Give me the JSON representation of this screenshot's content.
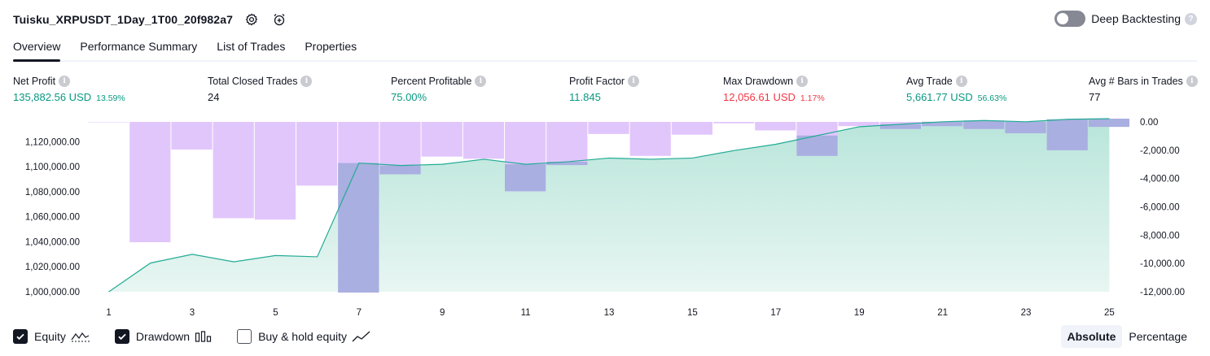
{
  "header": {
    "strategy_title": "Tuisku_XRPUSDT_1Day_1T00_20f982a7",
    "deep_backtesting_label": "Deep Backtesting"
  },
  "tabs": [
    {
      "label": "Overview",
      "active": true
    },
    {
      "label": "Performance Summary",
      "active": false
    },
    {
      "label": "List of Trades",
      "active": false
    },
    {
      "label": "Properties",
      "active": false
    }
  ],
  "metrics": {
    "net_profit": {
      "label": "Net Profit",
      "value": "135,882.56 USD",
      "pct": "13.59%"
    },
    "total_closed_trades": {
      "label": "Total Closed Trades",
      "value": "24"
    },
    "percent_profitable": {
      "label": "Percent Profitable",
      "value": "75.00%"
    },
    "profit_factor": {
      "label": "Profit Factor",
      "value": "11.845"
    },
    "max_drawdown": {
      "label": "Max Drawdown",
      "value": "12,056.61 USD",
      "pct": "1.17%"
    },
    "avg_trade": {
      "label": "Avg Trade",
      "value": "5,661.77 USD",
      "pct": "56.63%"
    },
    "avg_bars": {
      "label": "Avg # Bars in Trades",
      "value": "77"
    }
  },
  "colors": {
    "equity_line": "#22ab94",
    "equity_fill": "#b8e5da",
    "drawdown_bar": "#e1c6fc",
    "overlap_bar": "#a9afe0",
    "green": "#089981",
    "red": "#f23645"
  },
  "chart_data": {
    "type": "area",
    "x": [
      1,
      2,
      3,
      4,
      5,
      6,
      7,
      8,
      9,
      10,
      11,
      12,
      13,
      14,
      15,
      16,
      17,
      18,
      19,
      20,
      21,
      22,
      23,
      24,
      25
    ],
    "x_ticks": [
      "1",
      "3",
      "5",
      "7",
      "9",
      "11",
      "13",
      "15",
      "17",
      "19",
      "21",
      "23",
      "25"
    ],
    "y_left_ticks": [
      "1,000,000.00",
      "1,020,000.00",
      "1,040,000.00",
      "1,060,000.00",
      "1,080,000.00",
      "1,100,000.00",
      "1,120,000.00"
    ],
    "y_right_ticks": [
      "0.00",
      "-2,000.00",
      "-4,000.00",
      "-6,000.00",
      "-8,000.00",
      "-10,000.00",
      "-12,000.00"
    ],
    "y_left_range": [
      1000000,
      1135882.56
    ],
    "y_right_range": [
      -12000,
      0
    ],
    "series": [
      {
        "name": "Equity",
        "axis": "left",
        "values": [
          1000000,
          1023000,
          1030000,
          1024000,
          1029000,
          1028000,
          1103000,
          1101000,
          1102000,
          1106000,
          1102000,
          1104000,
          1107000,
          1106000,
          1107000,
          1113000,
          1118000,
          1125000,
          1132000,
          1134000,
          1136000,
          1137000,
          1136000,
          1138000,
          1138500
        ]
      },
      {
        "name": "Drawdown",
        "axis": "right",
        "values": [
          -30,
          -8500,
          -1950,
          -6800,
          -6900,
          -4500,
          -12050,
          -3700,
          -2450,
          -2600,
          -4900,
          -3050,
          -850,
          -2400,
          -900,
          -100,
          -600,
          -2400,
          -300,
          -500,
          -300,
          -500,
          -800,
          -2000,
          -350
        ]
      }
    ]
  },
  "legend": {
    "equity": {
      "label": "Equity",
      "checked": true
    },
    "drawdown": {
      "label": "Drawdown",
      "checked": true
    },
    "buy_hold": {
      "label": "Buy & hold equity",
      "checked": false
    }
  },
  "mode": {
    "absolute": "Absolute",
    "percentage": "Percentage"
  }
}
